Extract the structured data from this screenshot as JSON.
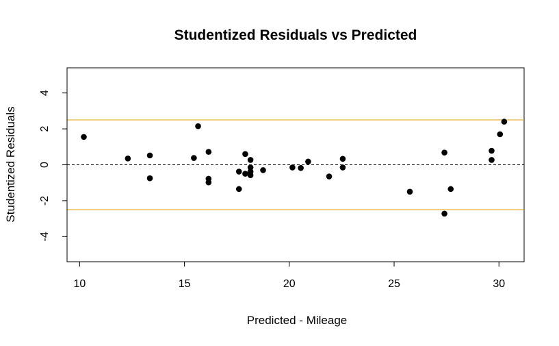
{
  "chart_data": {
    "type": "scatter",
    "title": "Studentized Residuals vs Predicted",
    "xlabel": "Predicted - Mileage",
    "ylabel": "Studentized Residuals",
    "xlim": [
      9.4,
      31.2
    ],
    "ylim": [
      -5.4,
      5.4
    ],
    "x_ticks": [
      10,
      15,
      20,
      25,
      30
    ],
    "y_ticks": [
      -4,
      -2,
      0,
      2,
      4
    ],
    "x_tick_labels": [
      "10",
      "15",
      "20",
      "25",
      "30"
    ],
    "y_tick_labels": [
      "-4",
      "-2",
      "0",
      "2",
      "4"
    ],
    "reference_lines": [
      {
        "y": 0,
        "style": "dashed",
        "color": "#000000"
      },
      {
        "y": 2.5,
        "style": "solid",
        "color": "#E69F00"
      },
      {
        "y": -2.5,
        "style": "solid",
        "color": "#E69F00"
      }
    ],
    "grid": false,
    "point_color": "#000000",
    "points": [
      {
        "x": 10.2,
        "y": 1.55
      },
      {
        "x": 12.3,
        "y": 0.35
      },
      {
        "x": 13.35,
        "y": 0.52
      },
      {
        "x": 13.35,
        "y": -0.75
      },
      {
        "x": 15.45,
        "y": 0.38
      },
      {
        "x": 15.65,
        "y": 2.15
      },
      {
        "x": 16.15,
        "y": 0.72
      },
      {
        "x": 16.15,
        "y": -0.78
      },
      {
        "x": 16.15,
        "y": -0.98
      },
      {
        "x": 17.6,
        "y": -0.38
      },
      {
        "x": 17.6,
        "y": -1.35
      },
      {
        "x": 17.9,
        "y": 0.6
      },
      {
        "x": 17.9,
        "y": -0.5
      },
      {
        "x": 18.15,
        "y": 0.27
      },
      {
        "x": 18.15,
        "y": -0.15
      },
      {
        "x": 18.15,
        "y": -0.38
      },
      {
        "x": 18.15,
        "y": -0.58
      },
      {
        "x": 18.75,
        "y": -0.3
      },
      {
        "x": 20.15,
        "y": -0.15
      },
      {
        "x": 20.55,
        "y": -0.18
      },
      {
        "x": 20.9,
        "y": 0.18
      },
      {
        "x": 21.9,
        "y": -0.65
      },
      {
        "x": 22.55,
        "y": 0.33
      },
      {
        "x": 22.55,
        "y": -0.15
      },
      {
        "x": 25.75,
        "y": -1.5
      },
      {
        "x": 27.4,
        "y": 0.68
      },
      {
        "x": 27.4,
        "y": -2.72
      },
      {
        "x": 27.7,
        "y": -1.35
      },
      {
        "x": 29.65,
        "y": 0.78
      },
      {
        "x": 29.65,
        "y": 0.27
      },
      {
        "x": 30.05,
        "y": 1.7
      },
      {
        "x": 30.25,
        "y": 2.4
      }
    ]
  }
}
